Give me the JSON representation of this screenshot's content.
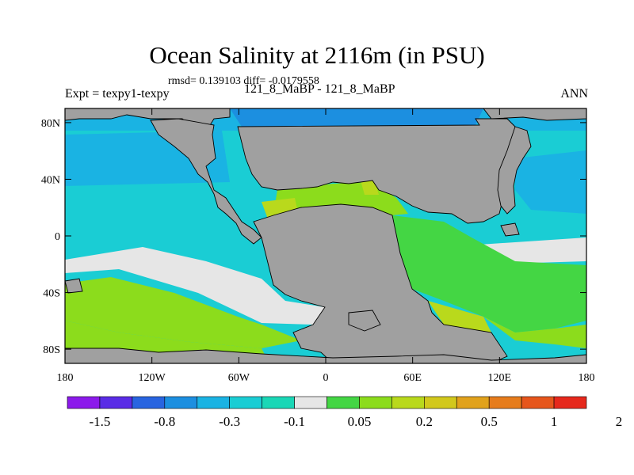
{
  "title": "Ocean Salinity at 2116m (in PSU)",
  "stats_line": "rmsd= 0.139103 diff= -0.0179558",
  "experiment_label": "Expt = texpy1-texpy",
  "cases_label": "121_8_MaBP - 121_8_MaBP",
  "season_label": "ANN",
  "map": {
    "longitude_ticks": [
      "180",
      "120W",
      "60W",
      "0",
      "60E",
      "120E",
      "180"
    ],
    "latitude_ticks": [
      "80N",
      "40N",
      "0",
      "40S",
      "80S"
    ],
    "land_color": "#a0a0a0"
  },
  "colorbar": {
    "colors": [
      "#8c1aeb",
      "#5a2ce6",
      "#2864e0",
      "#1c8fe0",
      "#1ab3e3",
      "#1acdd4",
      "#1ad7b6",
      "#e6e6e6",
      "#44d644",
      "#8cdc1c",
      "#b9d91c",
      "#d2c81c",
      "#e1a21c",
      "#e67c1c",
      "#e6561c",
      "#e6281c"
    ],
    "labels": [
      "-1.5",
      "-0.8",
      "-0.3",
      "-0.1",
      "0.05",
      "0.2",
      "0.5",
      "1",
      "2"
    ]
  }
}
